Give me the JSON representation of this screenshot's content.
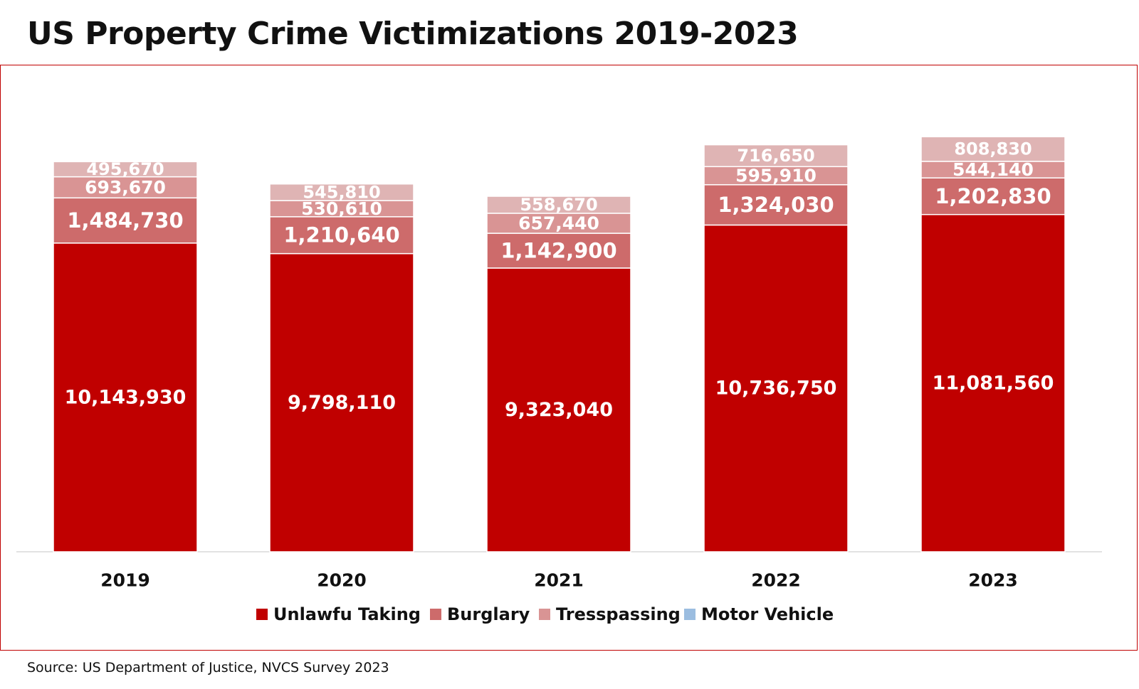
{
  "title": "US Property Crime Victimizations 2019-2023",
  "source": "Source: US Department of Justice, NVCS  Survey 2023",
  "chart_data": {
    "type": "bar",
    "stacked": true,
    "title": "US Property Crime Victimizations 2019-2023",
    "categories": [
      "2019",
      "2020",
      "2021",
      "2022",
      "2023"
    ],
    "series": [
      {
        "name": "Unlawfu Taking",
        "color": "#c00000",
        "values": [
          10143930,
          9798110,
          9323040,
          10736750,
          11081560
        ],
        "labels": [
          "10,143,930",
          "9,798,110",
          "9,323,040",
          "10,736,750",
          "11,081,560"
        ]
      },
      {
        "name": "Burglary",
        "color": "#cd6b6b",
        "values": [
          1484730,
          1210640,
          1142900,
          1324030,
          1202830
        ],
        "labels": [
          "1,484,730",
          "1,210,640",
          "1,142,900",
          "1,324,030",
          "1,202,830"
        ]
      },
      {
        "name": "Tresspassing",
        "color": "#d99494",
        "values": [
          693670,
          530610,
          657440,
          595910,
          544140
        ],
        "labels": [
          "693,670",
          "530,610",
          "657,440",
          "595,910",
          "544,140"
        ]
      },
      {
        "name": "Motor Vehicle",
        "color": "#dfb4b4",
        "legend_color": "#9bbde0",
        "values": [
          495670,
          545810,
          558670,
          716650,
          808830
        ],
        "labels": [
          "495,670",
          "545,810",
          "558,670",
          "716,650",
          "808,830"
        ]
      }
    ],
    "ylim": [
      0,
      14000000
    ],
    "legend_position": "bottom",
    "grid": false
  }
}
